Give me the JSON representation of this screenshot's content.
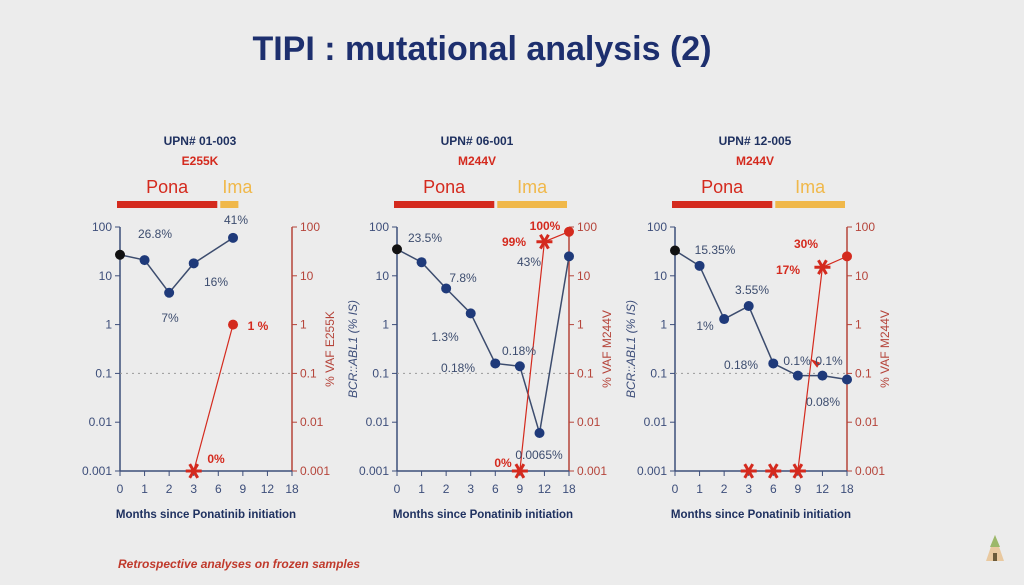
{
  "slide": {
    "title": "TIPI : mutational analysis (2)",
    "footnote": "Retrospective analyses on frozen samples",
    "logo": "tipi-tent-logo"
  },
  "colors": {
    "bcr": "#1f3a7a",
    "baseline": "#111111",
    "vaf": "#d42a1e",
    "pona": "#d42a1e",
    "ima": "#f0b84a",
    "axis_left": "#3d4e7a",
    "axis_right": "#b5443a"
  },
  "chart_data": [
    {
      "type": "line",
      "patient": "UPN# 01-003",
      "mutation": "E255K",
      "treatments": [
        {
          "label": "Pona",
          "from": 0,
          "to": 4
        },
        {
          "label": "Ima",
          "from": 4,
          "to": 4.9
        }
      ],
      "categories": [
        "0",
        "1",
        "2",
        "3",
        "6",
        "9",
        "12",
        "18"
      ],
      "xlabel": "Months since Ponatinib initiation",
      "ylabel_left": "",
      "ylabel_right": "% VAF E255K",
      "yticks": [
        "100",
        "10",
        "1",
        "0.1",
        "0.01",
        "0.001"
      ],
      "ylim": [
        0.001,
        100
      ],
      "yscale": "log",
      "reference_line": 0.1,
      "series": [
        {
          "name": "BCR::ABL1 (% IS)",
          "points": [
            [
              0,
              27
            ],
            [
              1,
              21
            ],
            [
              2,
              4.5
            ],
            [
              3,
              18
            ],
            [
              4.6,
              60
            ]
          ]
        },
        {
          "name": "% VAF E255K",
          "points": [
            [
              3,
              0.001,
              "star"
            ],
            [
              4.6,
              1,
              "dot"
            ]
          ]
        }
      ],
      "labels": [
        "26.8%",
        "7%",
        "16%",
        "41%",
        "0%",
        "1 %"
      ]
    },
    {
      "type": "line",
      "patient": "UPN# 06-001",
      "mutation": "M244V",
      "treatments": [
        {
          "label": "Pona",
          "from": 0,
          "to": 4
        },
        {
          "label": "Ima",
          "from": 4,
          "to": 7
        }
      ],
      "categories": [
        "0",
        "1",
        "2",
        "3",
        "6",
        "9",
        "12",
        "18"
      ],
      "xlabel": "Months since Ponatinib initiation",
      "ylabel_left": "BCR::ABL1 (% IS)",
      "ylabel_right": "% VAF M244V",
      "yticks": [
        "100",
        "10",
        "1",
        "0.1",
        "0.01",
        "0.001"
      ],
      "ylim": [
        0.001,
        100
      ],
      "yscale": "log",
      "reference_line": 0.1,
      "series": [
        {
          "name": "BCR::ABL1 (% IS)",
          "points": [
            [
              0,
              35
            ],
            [
              1,
              19
            ],
            [
              2,
              5.5
            ],
            [
              3,
              1.7
            ],
            [
              4,
              0.16
            ],
            [
              5,
              0.14
            ],
            [
              5.8,
              0.006
            ],
            [
              7,
              25
            ]
          ]
        },
        {
          "name": "% VAF M244V",
          "points": [
            [
              5,
              0.001,
              "star"
            ],
            [
              6,
              50,
              "star"
            ],
            [
              7,
              80,
              "dot"
            ]
          ]
        }
      ],
      "labels": [
        "23.5%",
        "7.8%",
        "1.3%",
        "0.18%",
        "0.18%",
        "0.0065%",
        "43%",
        "0%",
        "99%",
        "100%"
      ]
    },
    {
      "type": "line",
      "patient": "UPN# 12-005",
      "mutation": "M244V",
      "treatments": [
        {
          "label": "Pona",
          "from": 0,
          "to": 4
        },
        {
          "label": "Ima",
          "from": 4,
          "to": 7
        }
      ],
      "categories": [
        "0",
        "1",
        "2",
        "3",
        "6",
        "9",
        "12",
        "18"
      ],
      "xlabel": "Months since Ponatinib initiation",
      "ylabel_left": "BCR::ABL1 (% IS)",
      "ylabel_right": "% VAF M244V",
      "yticks": [
        "100",
        "10",
        "1",
        "0.1",
        "0.01",
        "0.001"
      ],
      "ylim": [
        0.001,
        100
      ],
      "yscale": "log",
      "reference_line": 0.1,
      "series": [
        {
          "name": "BCR::ABL1 (% IS)",
          "points": [
            [
              0,
              33
            ],
            [
              1,
              16
            ],
            [
              2,
              1.3
            ],
            [
              3,
              2.4
            ],
            [
              4,
              0.16
            ],
            [
              5,
              0.09
            ],
            [
              6,
              0.09
            ],
            [
              7,
              0.075
            ]
          ]
        },
        {
          "name": "% VAF M244V",
          "points": [
            [
              3,
              0.001,
              "star"
            ],
            [
              4,
              0.001,
              "star"
            ],
            [
              5,
              0.001,
              "star"
            ],
            [
              6,
              15,
              "star"
            ],
            [
              7,
              25,
              "dot"
            ]
          ]
        }
      ],
      "labels": [
        "15.35%",
        "3.55%",
        "1%",
        "0.18%",
        "0.1%",
        "0.1%",
        "0.08%",
        "17%",
        "30%"
      ]
    }
  ]
}
